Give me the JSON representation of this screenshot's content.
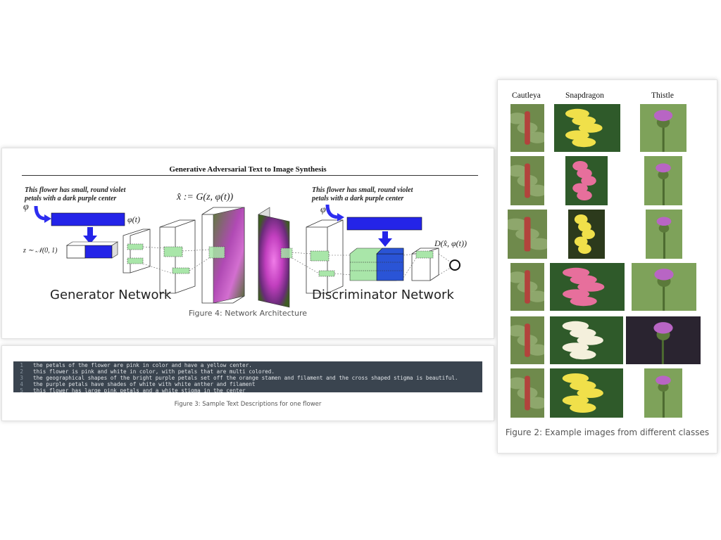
{
  "figure4": {
    "paper_title": "Generative Adversarial Text to Image Synthesis",
    "gen_description": [
      "This flower has small, round violet",
      "petals with a dark purple center"
    ],
    "disc_description": [
      "This flower has small, round violet",
      "petals with a dark purple center"
    ],
    "phi": "φ",
    "phi_t": "φ(t)",
    "z_noise": "z ∼ 𝒩(0, 1)",
    "x_hat_eq": "x̂ := G(z, φ(t))",
    "d_output": "D(x̂, φ(t))",
    "generator_label": "Generator Network",
    "discriminator_label": "Discriminator Network",
    "caption": "Figure 4: Network Architecture"
  },
  "figure3": {
    "lines": [
      {
        "num": "1",
        "text": "the petals of the flower are pink in color and have a yellow center."
      },
      {
        "num": "2",
        "text": "this flower is pink and white in color, with petals that are multi colored."
      },
      {
        "num": "3",
        "text": "the geographical shapes of the bright purple petals set off the orange stamen and filament and the cross shaped stigma is beautiful."
      },
      {
        "num": "4",
        "text": "the purple petals have shades of white with white anther and filament"
      },
      {
        "num": "5",
        "text": "this flower has large pink petals and a white stigma in the center"
      }
    ],
    "caption": "Figure 3: Sample Text Descriptions for one flower"
  },
  "figure2": {
    "columns": [
      "Cautleya",
      "Snapdragon",
      "Thistle"
    ],
    "caption": "Figure 2: Example images from different classes",
    "colors": {
      "cautleya_bg": "#6f8a4c",
      "cautleya_flower": "#b2433c",
      "snap_yellow": "#f0e04a",
      "snap_pink": "#e76f9c",
      "snap_white": "#f4f0dc",
      "thistle_bg": "#7ea25a",
      "thistle_flower": "#b865c4"
    }
  }
}
